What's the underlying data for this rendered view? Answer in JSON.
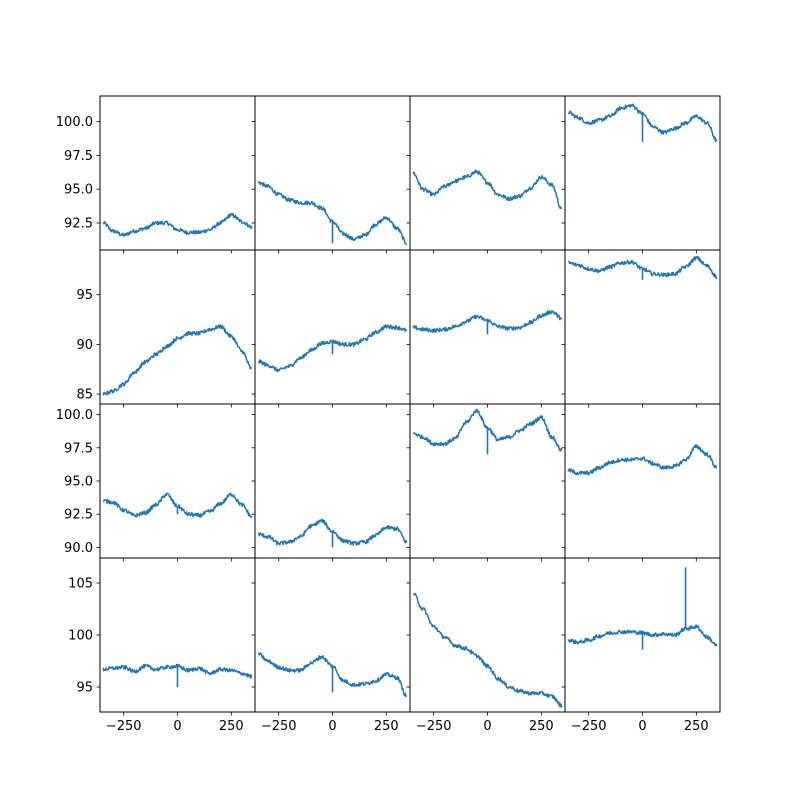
{
  "chart_data": {
    "type": "line",
    "layout": {
      "rows": 4,
      "cols": 4,
      "sharex": true,
      "sharey": "row"
    },
    "line_color": "#1f77b4",
    "x_range": [
      -360,
      360
    ],
    "x_ticks": [
      -250,
      0,
      250
    ],
    "x_tick_labels": [
      "−250",
      "0",
      "250"
    ],
    "rows": [
      {
        "ylim": [
          90.5,
          101.9
        ],
        "y_ticks": [
          92.5,
          95.0,
          97.5,
          100.0
        ],
        "y_tick_labels": [
          "92.5",
          "95.0",
          "97.5",
          "100.0"
        ],
        "panels": [
          {
            "x": [
              -345,
              -300,
              -250,
              -200,
              -150,
              -100,
              -50,
              0,
              50,
              100,
              150,
              200,
              250,
              300,
              345
            ],
            "y": [
              92.5,
              91.9,
              91.6,
              91.9,
              92.1,
              92.5,
              92.5,
              92.0,
              91.8,
              91.8,
              92.0,
              92.5,
              93.1,
              92.6,
              92.2
            ],
            "spikes": []
          },
          {
            "x": [
              -345,
              -300,
              -250,
              -200,
              -150,
              -100,
              -50,
              0,
              50,
              100,
              150,
              200,
              250,
              300,
              345
            ],
            "y": [
              95.5,
              95.2,
              94.6,
              94.2,
              94.0,
              94.0,
              93.6,
              92.6,
              91.7,
              91.3,
              91.6,
              92.4,
              92.9,
              92.1,
              91.0
            ],
            "spikes": [
              {
                "x": 0,
                "y": 91.0
              }
            ]
          },
          {
            "x": [
              -345,
              -300,
              -250,
              -200,
              -150,
              -100,
              -50,
              0,
              50,
              100,
              150,
              200,
              250,
              300,
              345
            ],
            "y": [
              96.2,
              95.0,
              94.6,
              95.2,
              95.6,
              95.9,
              96.3,
              95.5,
              94.6,
              94.3,
              94.5,
              95.1,
              95.9,
              95.3,
              93.5
            ],
            "spikes": []
          },
          {
            "x": [
              -345,
              -300,
              -250,
              -200,
              -150,
              -100,
              -50,
              0,
              50,
              100,
              150,
              200,
              250,
              300,
              345
            ],
            "y": [
              100.7,
              100.3,
              99.9,
              100.1,
              100.4,
              101.0,
              101.2,
              100.6,
              99.6,
              99.2,
              99.5,
              99.9,
              100.4,
              99.9,
              98.6
            ],
            "spikes": [
              {
                "x": 0,
                "y": 98.5
              }
            ]
          }
        ]
      },
      {
        "ylim": [
          84.0,
          99.5
        ],
        "y_ticks": [
          85,
          90,
          95
        ],
        "y_tick_labels": [
          "85",
          "90",
          "95"
        ],
        "panels": [
          {
            "x": [
              -345,
              -300,
              -250,
              -200,
              -150,
              -100,
              -50,
              0,
              50,
              100,
              150,
              200,
              250,
              300,
              345
            ],
            "y": [
              85.0,
              85.3,
              86.0,
              87.2,
              88.2,
              89.0,
              89.8,
              90.6,
              91.1,
              91.1,
              91.5,
              91.8,
              90.8,
              89.3,
              87.5
            ],
            "spikes": []
          },
          {
            "x": [
              -345,
              -300,
              -250,
              -200,
              -150,
              -100,
              -50,
              0,
              50,
              100,
              150,
              200,
              250,
              300,
              345
            ],
            "y": [
              88.3,
              87.9,
              87.4,
              87.8,
              88.6,
              89.4,
              90.1,
              90.3,
              90.0,
              90.0,
              90.5,
              91.2,
              91.8,
              91.7,
              91.4
            ],
            "spikes": [
              {
                "x": 0,
                "y": 89.0
              }
            ]
          },
          {
            "x": [
              -345,
              -300,
              -250,
              -200,
              -150,
              -100,
              -50,
              0,
              50,
              100,
              150,
              200,
              250,
              300,
              345
            ],
            "y": [
              91.7,
              91.5,
              91.4,
              91.5,
              91.8,
              92.3,
              92.8,
              92.4,
              91.8,
              91.6,
              91.7,
              92.2,
              92.9,
              93.3,
              92.6
            ],
            "spikes": [
              {
                "x": 0,
                "y": 91.0
              }
            ]
          },
          {
            "x": [
              -345,
              -300,
              -250,
              -200,
              -150,
              -100,
              -50,
              0,
              50,
              100,
              150,
              200,
              250,
              300,
              345
            ],
            "y": [
              98.2,
              98.0,
              97.6,
              97.4,
              97.8,
              98.2,
              98.3,
              97.6,
              97.1,
              97.0,
              97.1,
              97.8,
              98.7,
              97.9,
              96.8
            ],
            "spikes": [
              {
                "x": 0,
                "y": 96.5
              }
            ]
          }
        ]
      },
      {
        "ylim": [
          89.2,
          100.8
        ],
        "y_ticks": [
          90.0,
          92.5,
          95.0,
          97.5,
          100.0
        ],
        "y_tick_labels": [
          "90.0",
          "92.5",
          "95.0",
          "97.5",
          "100.0"
        ],
        "panels": [
          {
            "x": [
              -345,
              -300,
              -250,
              -200,
              -150,
              -100,
              -50,
              0,
              50,
              100,
              150,
              200,
              250,
              300,
              345
            ],
            "y": [
              93.5,
              93.4,
              92.8,
              92.4,
              92.6,
              93.2,
              94.0,
              93.1,
              92.5,
              92.4,
              92.7,
              93.3,
              94.0,
              93.2,
              92.3
            ],
            "spikes": [
              {
                "x": 0,
                "y": 92.5
              }
            ]
          },
          {
            "x": [
              -345,
              -300,
              -250,
              -200,
              -150,
              -100,
              -50,
              0,
              50,
              100,
              150,
              200,
              250,
              300,
              345
            ],
            "y": [
              91.0,
              90.8,
              90.3,
              90.4,
              90.8,
              91.6,
              92.0,
              91.2,
              90.5,
              90.3,
              90.4,
              90.9,
              91.5,
              91.4,
              90.4
            ],
            "spikes": [
              {
                "x": 0,
                "y": 90.0
              }
            ]
          },
          {
            "x": [
              -345,
              -300,
              -250,
              -200,
              -150,
              -100,
              -50,
              0,
              50,
              100,
              150,
              200,
              250,
              300,
              345
            ],
            "y": [
              98.6,
              98.3,
              97.8,
              97.8,
              98.2,
              99.4,
              100.3,
              99.0,
              98.1,
              98.3,
              98.8,
              99.3,
              99.8,
              98.3,
              97.3
            ],
            "spikes": [
              {
                "x": 0,
                "y": 97.0
              }
            ]
          },
          {
            "x": [
              -345,
              -300,
              -250,
              -200,
              -150,
              -100,
              -50,
              0,
              50,
              100,
              150,
              200,
              250,
              300,
              345
            ],
            "y": [
              95.8,
              95.6,
              95.6,
              96.0,
              96.4,
              96.6,
              96.6,
              96.7,
              96.3,
              96.0,
              96.1,
              96.6,
              97.6,
              97.0,
              96.0
            ],
            "spikes": []
          }
        ]
      },
      {
        "ylim": [
          92.6,
          107.4
        ],
        "y_ticks": [
          95,
          100,
          105
        ],
        "y_tick_labels": [
          "95",
          "100",
          "105"
        ],
        "panels": [
          {
            "x": [
              -345,
              -300,
              -250,
              -200,
              -150,
              -100,
              -50,
              0,
              50,
              100,
              150,
              200,
              250,
              300,
              345
            ],
            "y": [
              96.7,
              96.8,
              96.9,
              96.5,
              97.0,
              96.7,
              96.9,
              97.0,
              96.6,
              96.8,
              96.3,
              96.7,
              96.6,
              96.3,
              96.0
            ],
            "spikes": [
              {
                "x": 0,
                "y": 95.0
              }
            ]
          },
          {
            "x": [
              -345,
              -300,
              -250,
              -200,
              -150,
              -100,
              -50,
              0,
              50,
              100,
              150,
              200,
              250,
              300,
              345
            ],
            "y": [
              98.2,
              97.5,
              96.9,
              96.6,
              96.6,
              97.3,
              97.9,
              97.0,
              95.6,
              95.2,
              95.3,
              95.6,
              96.2,
              95.9,
              94.1
            ],
            "spikes": [
              {
                "x": 0,
                "y": 94.5
              }
            ]
          },
          {
            "x": [
              -345,
              -300,
              -250,
              -200,
              -150,
              -100,
              -50,
              0,
              50,
              100,
              150,
              200,
              250,
              300,
              345
            ],
            "y": [
              104.0,
              102.5,
              100.8,
              99.8,
              99.0,
              98.7,
              98.0,
              97.0,
              95.8,
              95.0,
              94.6,
              94.4,
              94.4,
              94.1,
              93.2
            ],
            "spikes": []
          },
          {
            "x": [
              -345,
              -300,
              -250,
              -200,
              -150,
              -100,
              -50,
              0,
              50,
              100,
              150,
              200,
              250,
              300,
              345
            ],
            "y": [
              99.5,
              99.3,
              99.5,
              99.9,
              100.2,
              100.3,
              100.3,
              100.2,
              100.0,
              100.1,
              100.0,
              100.6,
              100.8,
              99.8,
              99.0
            ],
            "spikes": [
              {
                "x": 0,
                "y": 98.6
              },
              {
                "x": 200,
                "y": 106.5
              }
            ]
          }
        ]
      }
    ]
  }
}
